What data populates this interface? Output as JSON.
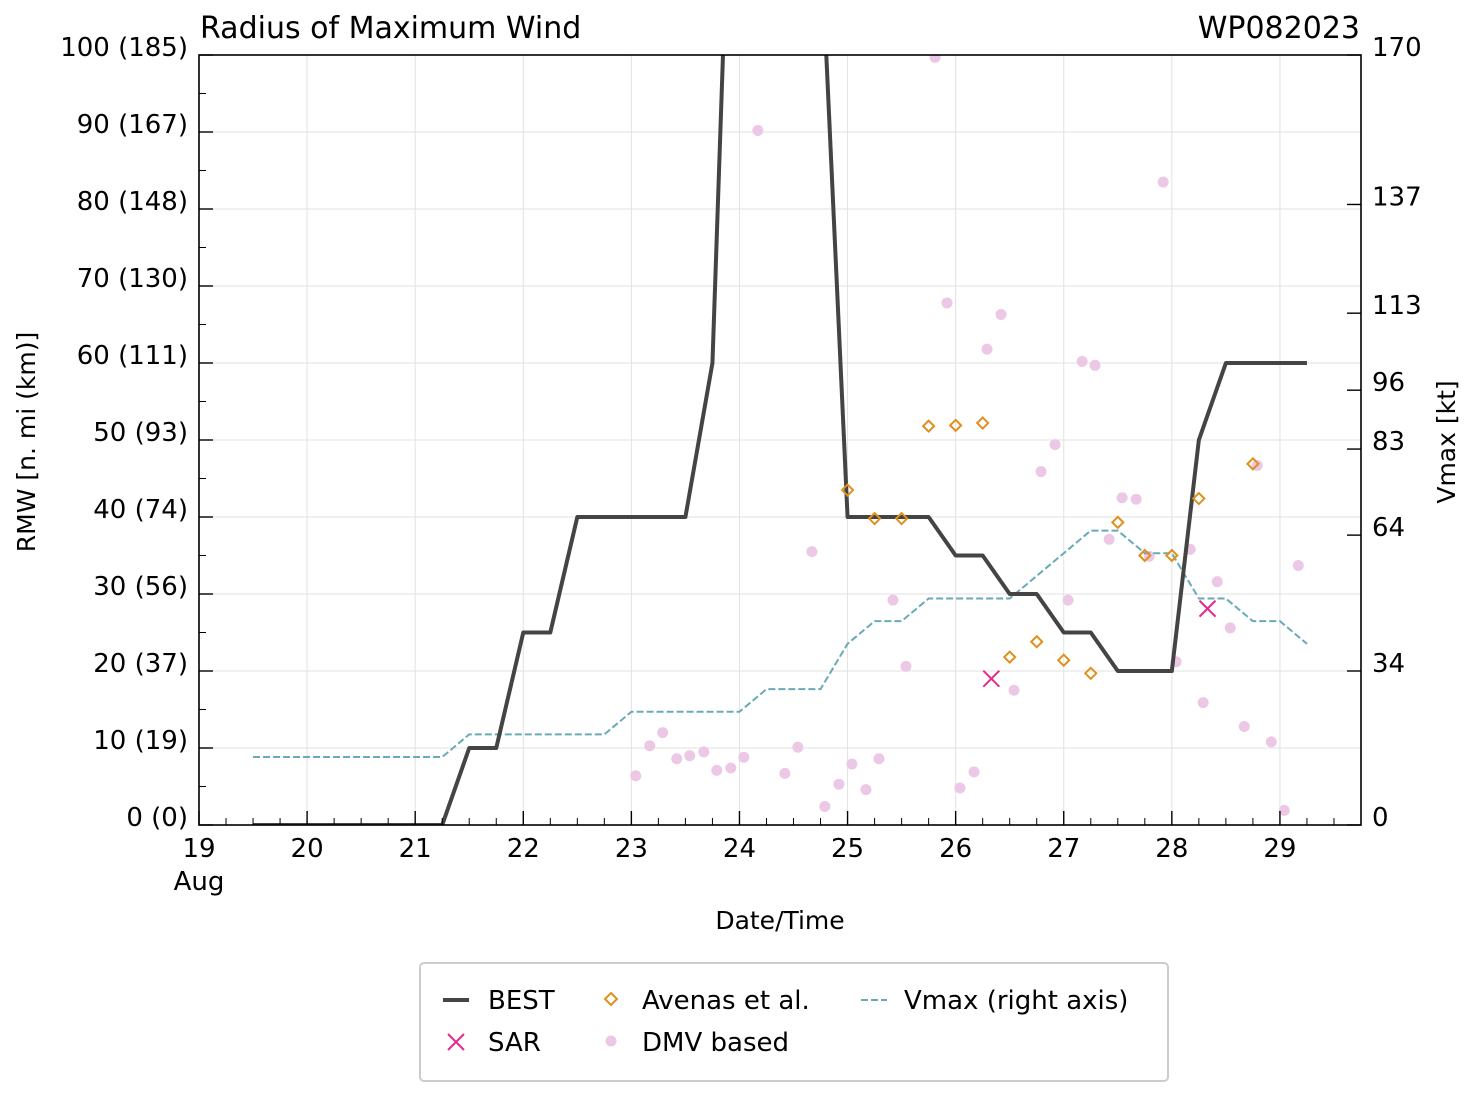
{
  "chart_data": {
    "type": "line",
    "title": "Radius of Maximum Wind",
    "storm_id": "WP082023",
    "xlabel": "Date/Time",
    "ylabel": "RMW [n. mi (km)]",
    "ylabel_right": "Vmax [kt]",
    "xlim": [
      19,
      29.75
    ],
    "ylim": [
      0,
      100
    ],
    "ylim_right": [
      0,
      170
    ],
    "x_ticks": [
      19,
      20,
      21,
      22,
      23,
      24,
      25,
      26,
      27,
      28,
      29
    ],
    "x_tick_labels": [
      "19",
      "20",
      "21",
      "22",
      "23",
      "24",
      "25",
      "26",
      "27",
      "28",
      "29"
    ],
    "x_sub_label": "Aug",
    "y_ticks": [
      0,
      10,
      20,
      30,
      40,
      50,
      60,
      70,
      80,
      90,
      100
    ],
    "y_tick_labels": [
      "0 (0)",
      "10 (19)",
      "20 (37)",
      "30 (56)",
      "40 (74)",
      "50 (93)",
      "60 (111)",
      "70 (130)",
      "80 (148)",
      "90 (167)",
      "100 (185)"
    ],
    "y_right_ticks": [
      0,
      34,
      64,
      83,
      96,
      113,
      137,
      170
    ],
    "y_right_tick_labels": [
      "0",
      "34",
      "64",
      "83",
      "96",
      "113",
      "137",
      "170"
    ],
    "grid": true,
    "legend_position": "bottom-center",
    "legend": {
      "best": "BEST",
      "sar": "SAR",
      "avenas": "Avenas et al.",
      "dmv": "DMV based",
      "vmax": "Vmax (right axis)"
    },
    "colors": {
      "best": "#444444",
      "sar": "#e8298c",
      "avenas": "#e0901c",
      "dmv": "#ecc8e6",
      "vmax": "#6aaab8",
      "grid": "#e2e2e2"
    },
    "series": [
      {
        "name": "BEST",
        "x": [
          19.5,
          21.25,
          21.5,
          21.75,
          22.0,
          22.25,
          22.5,
          23.5,
          23.75,
          23.85,
          24.8,
          25.0,
          25.75,
          26.0,
          26.25,
          26.5,
          26.75,
          27.0,
          27.25,
          27.5,
          28.0,
          28.25,
          28.5,
          29.25
        ],
        "y": [
          0,
          0,
          10,
          10,
          25,
          25,
          40,
          40,
          60,
          101,
          101,
          40,
          40,
          35,
          35,
          30,
          30,
          25,
          25,
          20,
          20,
          50,
          60,
          60
        ]
      },
      {
        "name": "Vmax (right axis)",
        "axis": "right",
        "x": [
          19.5,
          21.25,
          21.5,
          22.75,
          23.0,
          24.0,
          24.25,
          24.75,
          25.0,
          25.25,
          25.5,
          25.75,
          26.5,
          27.25,
          27.5,
          27.75,
          28.0,
          28.25,
          28.5,
          28.75,
          29.0,
          29.25
        ],
        "y": [
          15,
          15,
          20,
          20,
          25,
          25,
          30,
          30,
          40,
          45,
          45,
          50,
          50,
          65,
          65,
          60,
          60,
          50,
          50,
          45,
          45,
          40
        ]
      },
      {
        "name": "Avenas et al.",
        "x": [
          25.0,
          25.25,
          25.5,
          25.75,
          26.0,
          26.25,
          26.5,
          26.75,
          27.0,
          27.25,
          27.5,
          27.75,
          28.0,
          28.25,
          28.75
        ],
        "y": [
          43.5,
          39.8,
          39.8,
          51.8,
          51.9,
          52.2,
          21.8,
          23.8,
          21.4,
          19.7,
          39.3,
          35.0,
          35.0,
          42.4,
          46.9
        ]
      },
      {
        "name": "SAR",
        "x": [
          26.33,
          28.33
        ],
        "y": [
          19.0,
          28.1
        ]
      },
      {
        "name": "DMV based",
        "x": [
          23.04,
          23.17,
          23.29,
          23.42,
          23.54,
          23.67,
          23.79,
          23.92,
          24.04,
          24.17,
          24.42,
          24.54,
          24.67,
          24.79,
          24.92,
          25.04,
          25.17,
          25.29,
          25.42,
          25.54,
          25.81,
          25.92,
          26.04,
          26.17,
          26.29,
          26.42,
          26.54,
          26.79,
          26.92,
          27.04,
          27.17,
          27.29,
          27.42,
          27.54,
          27.67,
          27.79,
          27.92,
          28.04,
          28.17,
          28.29,
          28.42,
          28.54,
          28.67,
          28.79,
          28.92,
          29.04,
          29.17
        ],
        "y": [
          6.4,
          10.3,
          12.0,
          8.6,
          9.0,
          9.5,
          7.1,
          7.4,
          8.8,
          90.2,
          6.7,
          10.1,
          35.5,
          2.4,
          5.3,
          7.9,
          4.6,
          8.6,
          29.2,
          20.6,
          99.7,
          67.8,
          4.8,
          6.9,
          61.8,
          66.3,
          17.5,
          45.9,
          49.4,
          29.2,
          60.2,
          59.7,
          37.1,
          42.5,
          42.3,
          34.9,
          83.5,
          21.2,
          35.8,
          15.9,
          31.6,
          25.6,
          12.8,
          46.7,
          10.8,
          1.9,
          33.7
        ]
      }
    ]
  }
}
